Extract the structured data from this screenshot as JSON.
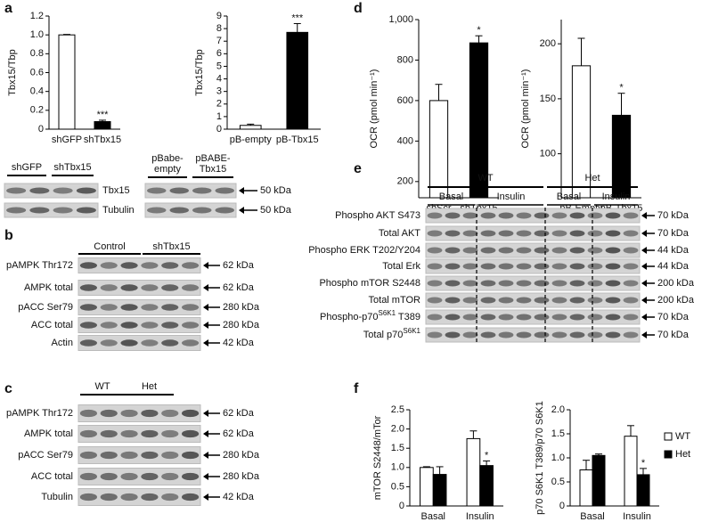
{
  "panel_letters": [
    "a",
    "b",
    "c",
    "d",
    "e",
    "f"
  ],
  "chart_data": [
    {
      "type": "bar",
      "y_label": "Tbx15/Tbp",
      "categories": [
        "shGFP",
        "shTbx15"
      ],
      "values": [
        1,
        0.08
      ],
      "errors": [
        0.005,
        0.015
      ],
      "colors": [
        "#ffffff",
        "#000000"
      ],
      "value_annotations": [
        null,
        "***"
      ],
      "ylim": [
        0,
        1.2
      ],
      "yticks": [
        0,
        0.2,
        0.4,
        0.6,
        0.8,
        {
          "value": 1,
          "label": "1.0"
        },
        1.2
      ]
    },
    {
      "type": "bar",
      "y_label": "Tbx15/Tbp",
      "categories": [
        "pB-empty",
        "pB-Tbx15"
      ],
      "values": [
        0.3,
        7.7
      ],
      "errors": [
        0.1,
        0.7
      ],
      "colors": [
        "#ffffff",
        "#000000"
      ],
      "value_annotations": [
        null,
        "***"
      ],
      "ylim": [
        0,
        9
      ],
      "yticks": [
        0,
        1,
        2,
        3,
        4,
        5,
        6,
        7,
        8,
        9
      ]
    },
    {
      "type": "bar",
      "y_label": "OCR (pmol min⁻¹)",
      "categories": [
        "shScr",
        "shTbx15"
      ],
      "values": [
        600,
        885
      ],
      "errors": [
        80,
        35
      ],
      "colors": [
        "#ffffff",
        "#000000"
      ],
      "value_annotations": [
        null,
        "*"
      ],
      "ylim": [
        120,
        1000
      ],
      "yticks": [
        200,
        400,
        600,
        800,
        {
          "value": 1000,
          "label": "1,000"
        }
      ]
    },
    {
      "type": "bar",
      "y_label": "OCR (pmol min⁻¹)",
      "categories": [
        "pB-Empty",
        "pB-Tbx15"
      ],
      "values": [
        180,
        135
      ],
      "errors": [
        25,
        20
      ],
      "colors": [
        "#ffffff",
        "#000000"
      ],
      "value_annotations": [
        null,
        "*"
      ],
      "ylim": [
        60,
        222
      ],
      "yticks": [
        100,
        150,
        200
      ]
    },
    {
      "type": "bar",
      "y_label": "mTOR S2448/mTor",
      "categories": [
        "Basal",
        "Insulin"
      ],
      "series": [
        {
          "name": "WT",
          "color": "#ffffff",
          "values": [
            1,
            1.75
          ],
          "errors": [
            0.02,
            0.2
          ],
          "value_annotations": [
            null,
            null
          ]
        },
        {
          "name": "Het",
          "color": "#000000",
          "values": [
            0.82,
            1.05
          ],
          "errors": [
            0.2,
            0.12
          ],
          "value_annotations": [
            null,
            "*"
          ]
        }
      ],
      "ylim": [
        0,
        2.5
      ],
      "yticks": [
        0,
        0.5,
        {
          "value": 1,
          "label": "1.0"
        },
        1.5,
        {
          "value": 2,
          "label": "2.0"
        },
        2.5
      ]
    },
    {
      "type": "bar",
      "y_label": "p70 S6K1 T389/p70 S6K1",
      "categories": [
        "Basal",
        "Insulin"
      ],
      "legend": "right",
      "series": [
        {
          "name": "WT",
          "color": "#ffffff",
          "values": [
            0.75,
            1.45
          ],
          "errors": [
            0.2,
            0.22
          ],
          "value_annotations": [
            null,
            null
          ]
        },
        {
          "name": "Het",
          "color": "#000000",
          "values": [
            1.05,
            0.65
          ],
          "errors": [
            0.03,
            0.13
          ],
          "value_annotations": [
            null,
            "*"
          ]
        }
      ],
      "ylim": [
        0,
        2
      ],
      "yticks": [
        0,
        0.5,
        {
          "value": 1,
          "label": "1.0"
        },
        1.5,
        {
          "value": 2,
          "label": "2.0"
        }
      ]
    }
  ],
  "blots": [
    {
      "groups": [
        [
          "shGFP"
        ],
        [
          "shTbx15"
        ]
      ],
      "rows": [
        {
          "label": "Tbx15"
        },
        {
          "label": "Tubulin"
        }
      ]
    },
    {
      "groups": [
        [
          "pBabe-",
          "empty"
        ],
        [
          "pBABE-",
          "Tbx15"
        ]
      ],
      "rows": [
        {
          "kda": "50 kDa"
        },
        {
          "kda": "50 kDa"
        }
      ]
    },
    {
      "groups": [
        [
          "Control"
        ],
        [
          "shTbx15"
        ]
      ],
      "rows": [
        {
          "label": "pAMPK Thr172",
          "kda": "62 kDa"
        },
        {
          "label": "AMPK total",
          "kda": "62 kDa"
        },
        {
          "label": "pACC Ser79",
          "kda": "280 kDa"
        },
        {
          "label": "ACC total",
          "kda": "280 kDa"
        },
        {
          "label": "Actin",
          "kda": "42 kDa"
        }
      ]
    },
    {
      "groups": [
        [
          "WT"
        ],
        [
          "Het"
        ]
      ],
      "rows": [
        {
          "label": "pAMPK Thr172",
          "kda": "62 kDa"
        },
        {
          "label": "AMPK total",
          "kda": "62 kDa"
        },
        {
          "label": "pACC Ser79",
          "kda": "280 kDa"
        },
        {
          "label": "ACC total",
          "kda": "280 kDa"
        },
        {
          "label": "Tubulin",
          "kda": "42 kDa"
        }
      ]
    },
    {
      "groups": [
        [
          "WT"
        ],
        [
          "Het"
        ]
      ],
      "subgroups": [
        "Basal",
        "Insulin",
        "Basal",
        "Insulin"
      ],
      "rows": [
        {
          "label": "Phospho AKT S473",
          "kda": "70 kDa"
        },
        {
          "label": "Total AKT",
          "kda": "70 kDa"
        },
        {
          "label": "Phospho ERK T202/Y204",
          "kda": "44 kDa"
        },
        {
          "label": "Total Erk",
          "kda": "44 kDa"
        },
        {
          "label": "Phospho mTOR S2448",
          "kda": "200 kDa"
        },
        {
          "label": "Total mTOR",
          "kda": "200 kDa"
        },
        {
          "label": "Phospho-p70",
          "sup": "S6K1",
          "label_end": " T389",
          "kda": "70 kDa"
        },
        {
          "label": "Total p70",
          "sup": "S6K1",
          "kda": "70 kDa"
        }
      ]
    }
  ]
}
